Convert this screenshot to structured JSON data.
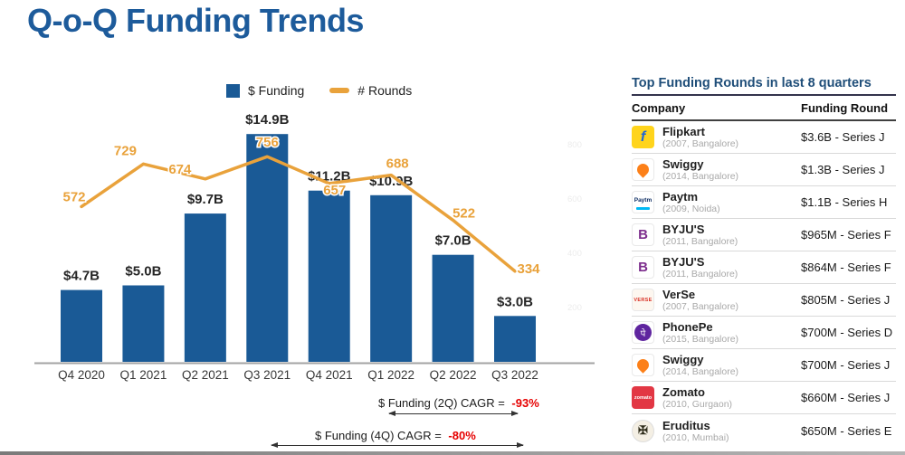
{
  "page": {
    "title": "Q-o-Q Funding Trends"
  },
  "colors": {
    "title_blue": "#1d5b9b",
    "bar_blue": "#1a5a96",
    "line_orange": "#e9a23b",
    "negative_red": "#e60000",
    "table_title_blue": "#1f4e79"
  },
  "chart_data": {
    "type": "bar",
    "categories": [
      "Q4 2020",
      "Q1 2021",
      "Q2 2021",
      "Q3 2021",
      "Q4 2021",
      "Q1 2022",
      "Q2 2022",
      "Q3 2022"
    ],
    "series": [
      {
        "name": "$ Funding",
        "type": "bar",
        "color": "#1a5a96",
        "unit": "USD billions",
        "values": [
          4.7,
          5.0,
          9.7,
          14.9,
          11.2,
          10.9,
          7.0,
          3.0
        ],
        "labels": [
          "$4.7B",
          "$5.0B",
          "$9.7B",
          "$14.9B",
          "$11.2B",
          "$10.9B",
          "$7.0B",
          "$3.0B"
        ]
      },
      {
        "name": "# Rounds",
        "type": "line",
        "color": "#e9a23b",
        "values": [
          572,
          729,
          674,
          756,
          657,
          688,
          522,
          334
        ],
        "labels": [
          "572",
          "729",
          "674",
          "756",
          "657",
          "688",
          "522",
          "334"
        ]
      }
    ],
    "legend": [
      {
        "label": "$ Funding",
        "swatch": "square",
        "color": "#1a5a96"
      },
      {
        "label": "# Rounds",
        "swatch": "dash",
        "color": "#e9a23b"
      }
    ],
    "funding_axis_max": 16,
    "rounds_axis_max": 800,
    "secondary_axis_ticks": [
      "800",
      "600",
      "400",
      "200"
    ],
    "grid": "off",
    "legend_position": "top",
    "annotations": [
      {
        "text": "$ Funding (2Q) CAGR = ",
        "value": "-93%",
        "span": "Q1 2022 to Q3 2022"
      },
      {
        "text": "$ Funding (4Q) CAGR = ",
        "value": "-80%",
        "span": "Q3 2021 to Q3 2022"
      }
    ]
  },
  "table": {
    "title": "Top Funding Rounds in last 8 quarters",
    "columns": [
      "Company",
      "Funding Round"
    ],
    "rows": [
      {
        "company": "Flipkart",
        "details": "(2007, Bangalore)",
        "round": "$3.6B - Series J",
        "icon": {
          "name": "flipkart-logo",
          "glyph": "f"
        }
      },
      {
        "company": "Swiggy",
        "details": "(2014, Bangalore)",
        "round": "$1.3B - Series J",
        "icon": {
          "name": "swiggy-logo",
          "glyph": ""
        }
      },
      {
        "company": "Paytm",
        "details": "(2009, Noida)",
        "round": "$1.1B - Series H",
        "icon": {
          "name": "paytm-logo",
          "glyph": "Paytm"
        }
      },
      {
        "company": "BYJU'S",
        "details": "(2011, Bangalore)",
        "round": "$965M - Series F",
        "icon": {
          "name": "byjus-logo",
          "glyph": "B"
        }
      },
      {
        "company": "BYJU'S",
        "details": "(2011, Bangalore)",
        "round": "$864M - Series F",
        "icon": {
          "name": "byjus-logo",
          "glyph": "B"
        }
      },
      {
        "company": "VerSe",
        "details": "(2007, Bangalore)",
        "round": "$805M - Series J",
        "icon": {
          "name": "verse-logo",
          "glyph": "VERSE"
        }
      },
      {
        "company": "PhonePe",
        "details": "(2015, Bangalore)",
        "round": "$700M - Series D",
        "icon": {
          "name": "phonepe-logo",
          "glyph": "पे"
        }
      },
      {
        "company": "Swiggy",
        "details": "(2014, Bangalore)",
        "round": "$700M - Series J",
        "icon": {
          "name": "swiggy-logo",
          "glyph": ""
        }
      },
      {
        "company": "Zomato",
        "details": "(2010, Gurgaon)",
        "round": "$660M - Series J",
        "icon": {
          "name": "zomato-logo",
          "glyph": "zomato"
        }
      },
      {
        "company": "Eruditus",
        "details": "(2010, Mumbai)",
        "round": "$650M - Series E",
        "icon": {
          "name": "eruditus-logo",
          "glyph": "✠"
        }
      }
    ]
  }
}
